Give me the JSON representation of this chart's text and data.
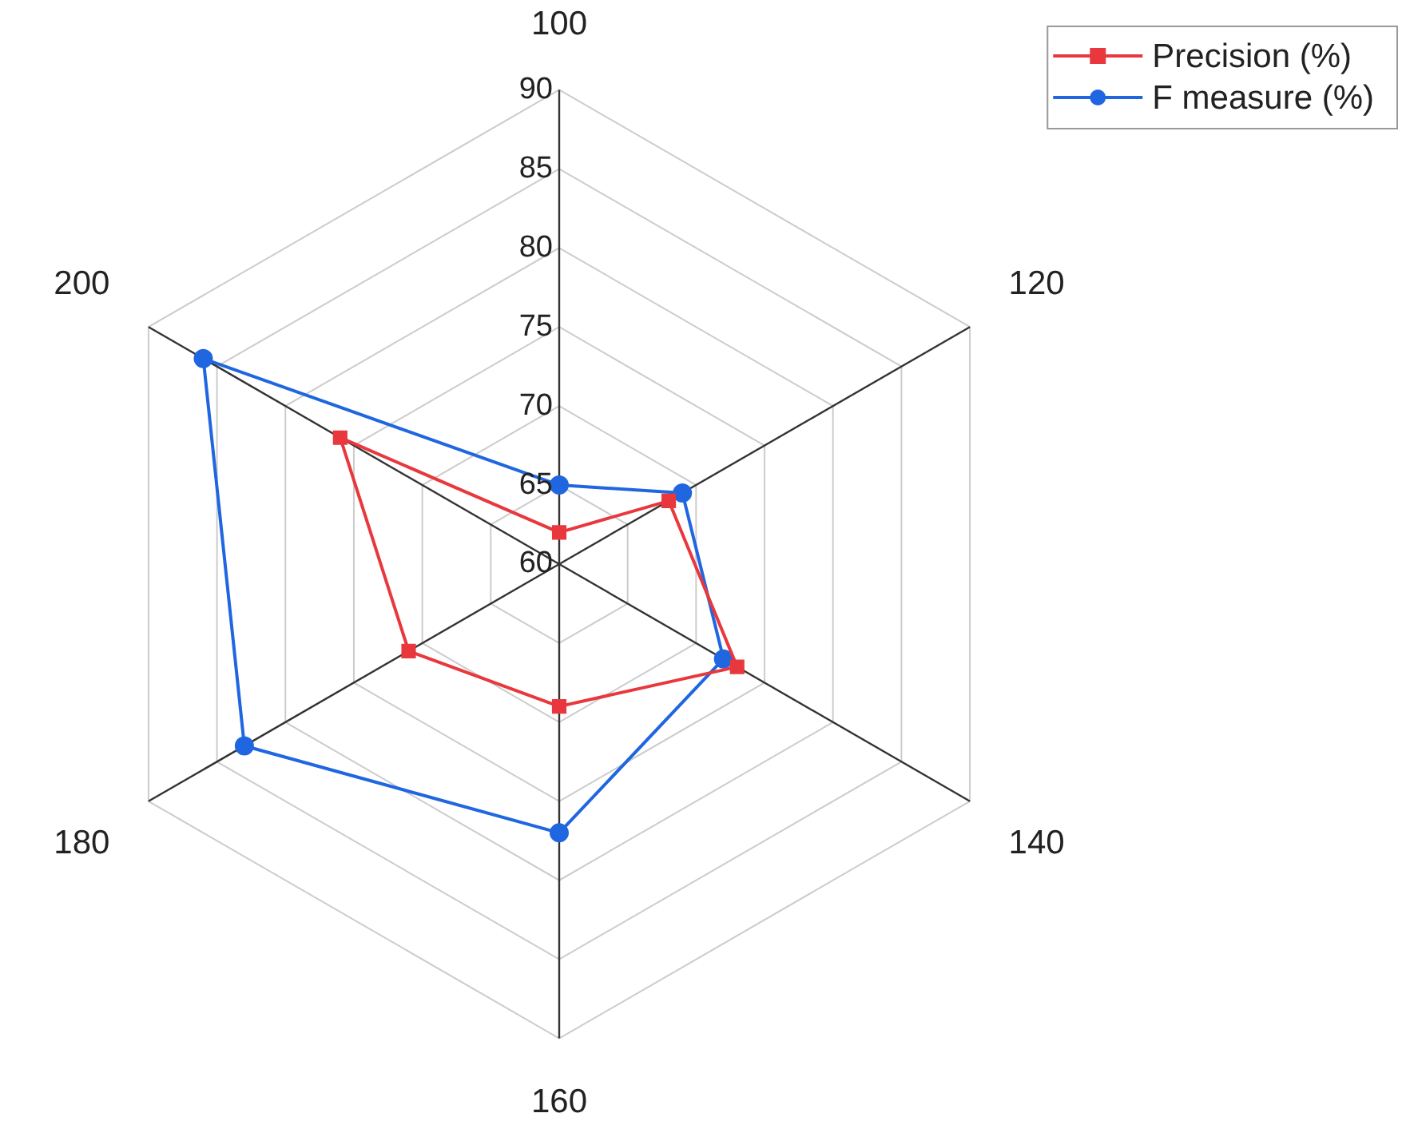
{
  "chart_data": {
    "type": "radar",
    "categories": [
      "100",
      "120",
      "140",
      "160",
      "180",
      "200"
    ],
    "ylim": [
      60,
      90
    ],
    "yticks": [
      60,
      65,
      70,
      75,
      80,
      85,
      90
    ],
    "grid": true,
    "legend": "top right",
    "series": [
      {
        "name": "Precision (%)",
        "color": "#e8383d",
        "marker": "square",
        "values": [
          62,
          68,
          73,
          69,
          71,
          76
        ]
      },
      {
        "name": "F measure (%)",
        "color": "#1f66e0",
        "marker": "circle",
        "values": [
          65,
          69,
          72,
          77,
          83,
          86
        ]
      }
    ]
  }
}
